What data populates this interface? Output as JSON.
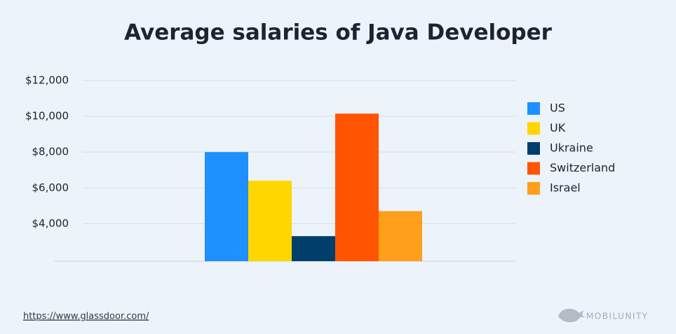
{
  "chart_data": {
    "type": "bar",
    "title": "Average salaries of Java Developer",
    "categories": [
      null
    ],
    "series": [
      {
        "name": "US",
        "color": "#1e90ff",
        "values": [
          8000
        ]
      },
      {
        "name": "UK",
        "color": "#ffd600",
        "values": [
          6400
        ]
      },
      {
        "name": "Ukraine",
        "color": "#003f6b",
        "values": [
          3300
        ]
      },
      {
        "name": "Switzerland",
        "color": "#ff5500",
        "values": [
          10150
        ]
      },
      {
        "name": "Israel",
        "color": "#ff9f1c",
        "values": [
          4700
        ]
      }
    ],
    "ylim": [
      1900,
      12000
    ],
    "yticks": [
      {
        "value": 4000,
        "label": "$4,000"
      },
      {
        "value": 6000,
        "label": "$6,000"
      },
      {
        "value": 8000,
        "label": "$8,000"
      },
      {
        "value": 10000,
        "label": "$10,000"
      },
      {
        "value": 12000,
        "label": "$12,000"
      }
    ],
    "grid": true,
    "legend": "right",
    "source": "https://www.glassdoor.com/",
    "brand": "MOBILUNITY"
  }
}
